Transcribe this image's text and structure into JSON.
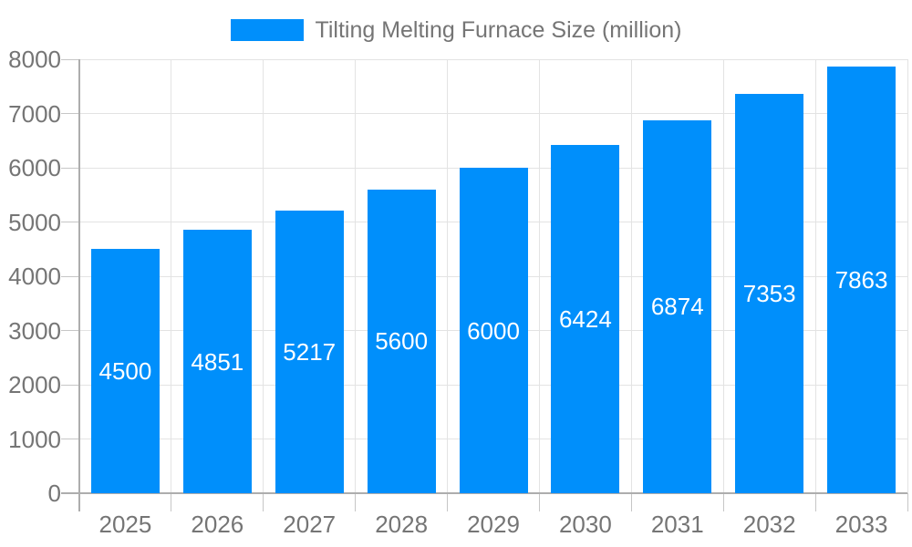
{
  "chart_data": {
    "type": "bar",
    "title": "",
    "legend": {
      "label": "Tilting Melting Furnace Size (million)",
      "position": "top"
    },
    "categories": [
      "2025",
      "2026",
      "2027",
      "2028",
      "2029",
      "2030",
      "2031",
      "2032",
      "2033"
    ],
    "series": [
      {
        "name": "Tilting Melting Furnace Size (million)",
        "values": [
          4500,
          4851,
          5217,
          5600,
          6000,
          6424,
          6874,
          7353,
          7863
        ]
      }
    ],
    "xlabel": "",
    "ylabel": "",
    "ylim": [
      0,
      8000
    ],
    "ytick_interval": 1000,
    "yticks": [
      0,
      1000,
      2000,
      3000,
      4000,
      5000,
      6000,
      7000,
      8000
    ],
    "grid": true,
    "value_labels": "centered-inside-bars",
    "colors": {
      "bar": "#008FFB",
      "bar_value_label": "#ffffff",
      "axis_text": "#757575",
      "legend_text": "#757575",
      "gridline": "#e3e3e3",
      "axis_line": "#adadad",
      "tick_mark": "#c6c6c6",
      "background": "#ffffff"
    }
  }
}
